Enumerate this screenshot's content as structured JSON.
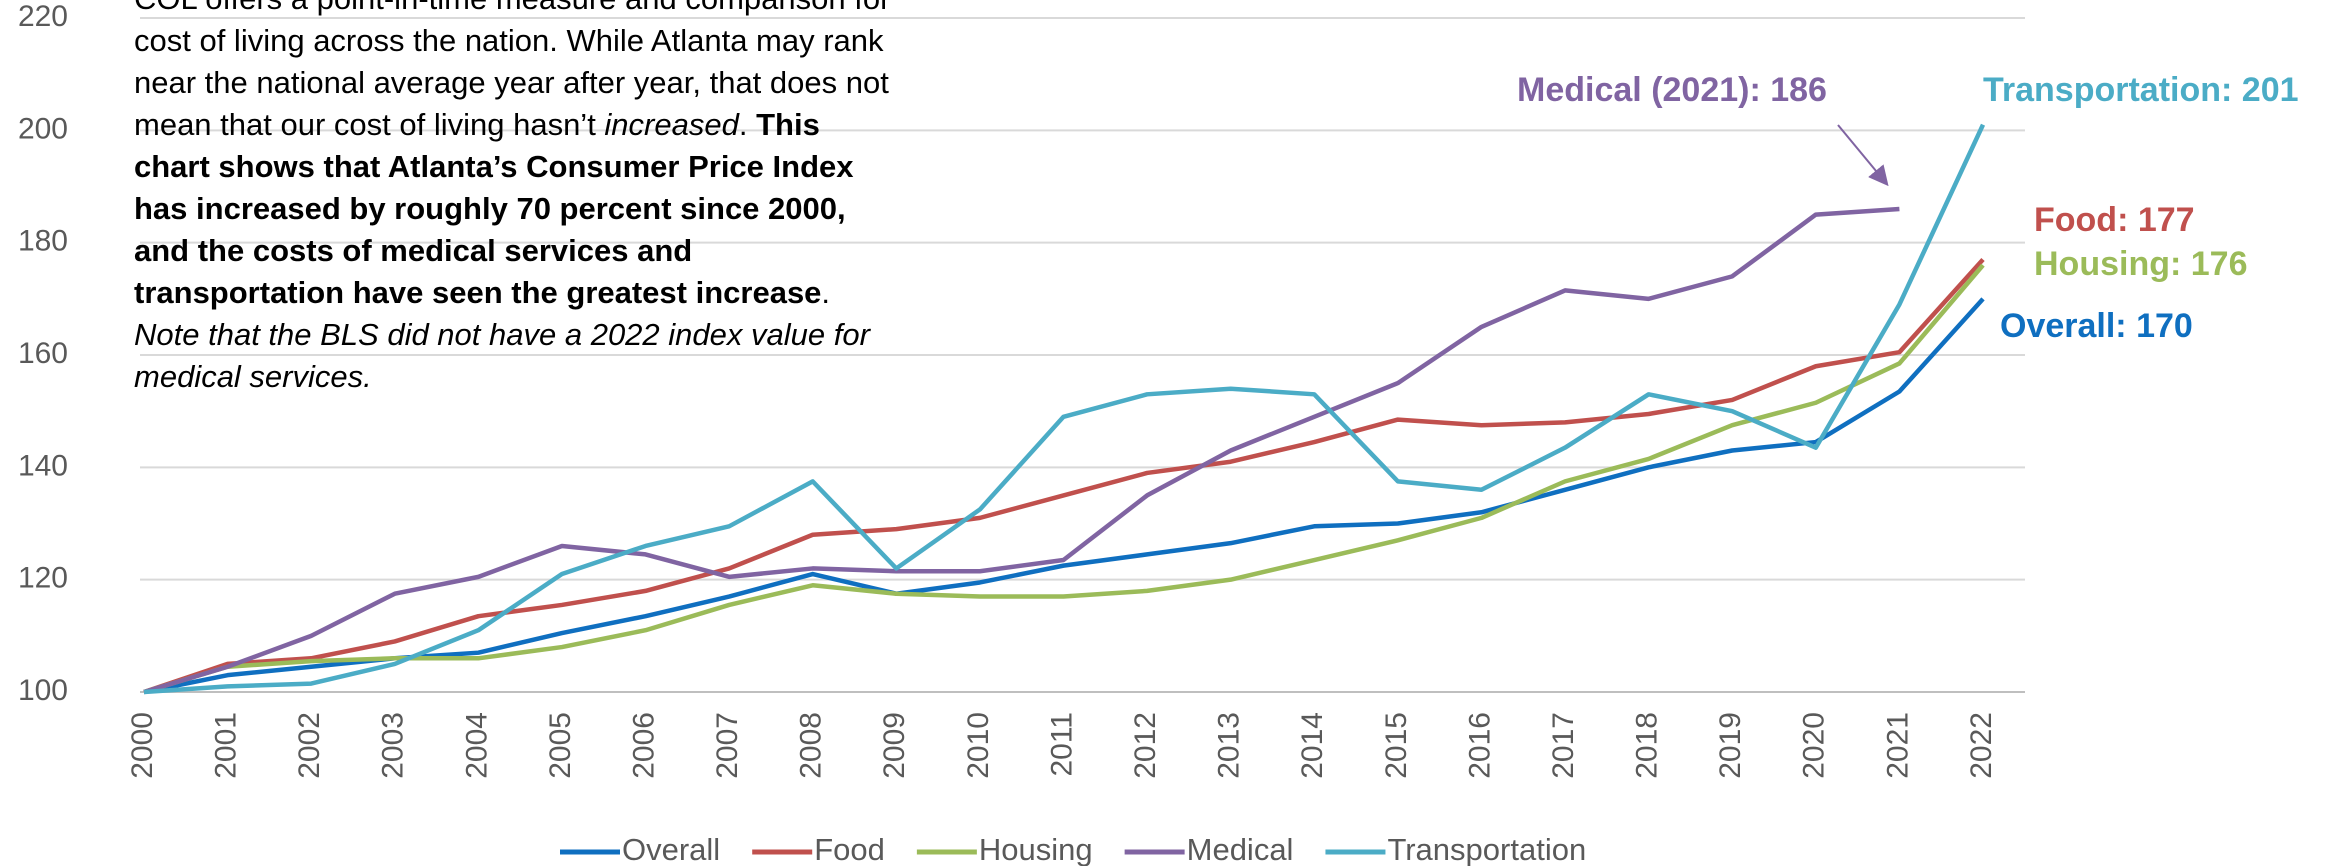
{
  "chart_data": {
    "type": "line",
    "categories": [
      "2000",
      "2001",
      "2002",
      "2003",
      "2004",
      "2005",
      "2006",
      "2007",
      "2008",
      "2009",
      "2010",
      "2011",
      "2012",
      "2013",
      "2014",
      "2015",
      "2016",
      "2017",
      "2018",
      "2019",
      "2020",
      "2021",
      "2022"
    ],
    "series": [
      {
        "name": "Overall",
        "color": "#0f6fc0",
        "values": [
          100,
          103,
          104.5,
          106,
          107,
          110.5,
          113.5,
          117,
          121,
          117.5,
          119.5,
          122.5,
          124.5,
          126.5,
          129.5,
          130,
          132,
          136,
          140,
          143,
          144.5,
          153.5,
          170
        ]
      },
      {
        "name": "Food",
        "color": "#c0504d",
        "values": [
          100,
          105,
          106,
          109,
          113.5,
          115.5,
          118,
          122,
          128,
          129,
          131,
          135,
          139,
          141,
          144.5,
          148.5,
          147.5,
          148,
          149.5,
          152,
          158,
          160.5,
          177
        ]
      },
      {
        "name": "Housing",
        "color": "#9bbb59",
        "values": [
          100,
          104.5,
          105.5,
          106,
          106,
          108,
          111,
          115.5,
          119,
          117.5,
          117,
          117,
          118,
          120,
          123.5,
          127,
          131,
          137.5,
          141.5,
          147.5,
          151.5,
          158.5,
          176
        ]
      },
      {
        "name": "Medical",
        "color": "#8064a2",
        "values": [
          100,
          104.5,
          110,
          117.5,
          120.5,
          126,
          124.5,
          120.5,
          122,
          121.5,
          121.5,
          123.5,
          135,
          143,
          149,
          155,
          165,
          171.5,
          170,
          174,
          185,
          186,
          null
        ]
      },
      {
        "name": "Transportation",
        "color": "#4bacc6",
        "values": [
          100,
          101,
          101.5,
          105,
          111,
          121,
          126,
          129.5,
          137.5,
          122,
          132.5,
          149,
          153,
          154,
          153,
          137.5,
          136,
          143.5,
          153,
          150,
          143.5,
          169,
          201
        ]
      }
    ],
    "ylim": [
      100,
      220
    ],
    "yticks": [
      100,
      120,
      140,
      160,
      180,
      200,
      220
    ],
    "grid": true,
    "legend": "bottom",
    "annotations": [
      {
        "text": "Medical (2021): 186",
        "color": "#8064a2"
      },
      {
        "text": "Transportation: 201",
        "color": "#4bacc6"
      },
      {
        "text": "Food: 177",
        "color": "#c0504d"
      },
      {
        "text": "Housing: 176",
        "color": "#9bbb59"
      },
      {
        "text": "Overall: 170",
        "color": "#0f6fc0"
      }
    ],
    "text_block": [
      {
        "text": "COL offers a point-in-time measure and comparison for cost of living across the nation. While Atlanta may rank near the national average year after year, that does not mean that our cost of living hasn’t ",
        "style": "normal"
      },
      {
        "text": "increased",
        "style": "italic"
      },
      {
        "text": ". ",
        "style": "normal"
      },
      {
        "text": "This chart shows that Atlanta’s Consumer Price Index has increased by roughly 70 percent since 2000, and the costs of medical services and transportation have seen the greatest increase",
        "style": "bold"
      },
      {
        "text": ". ",
        "style": "normal"
      },
      {
        "text": "Note that the BLS did not have a 2022 index value for medical services.",
        "style": "italic"
      }
    ]
  }
}
